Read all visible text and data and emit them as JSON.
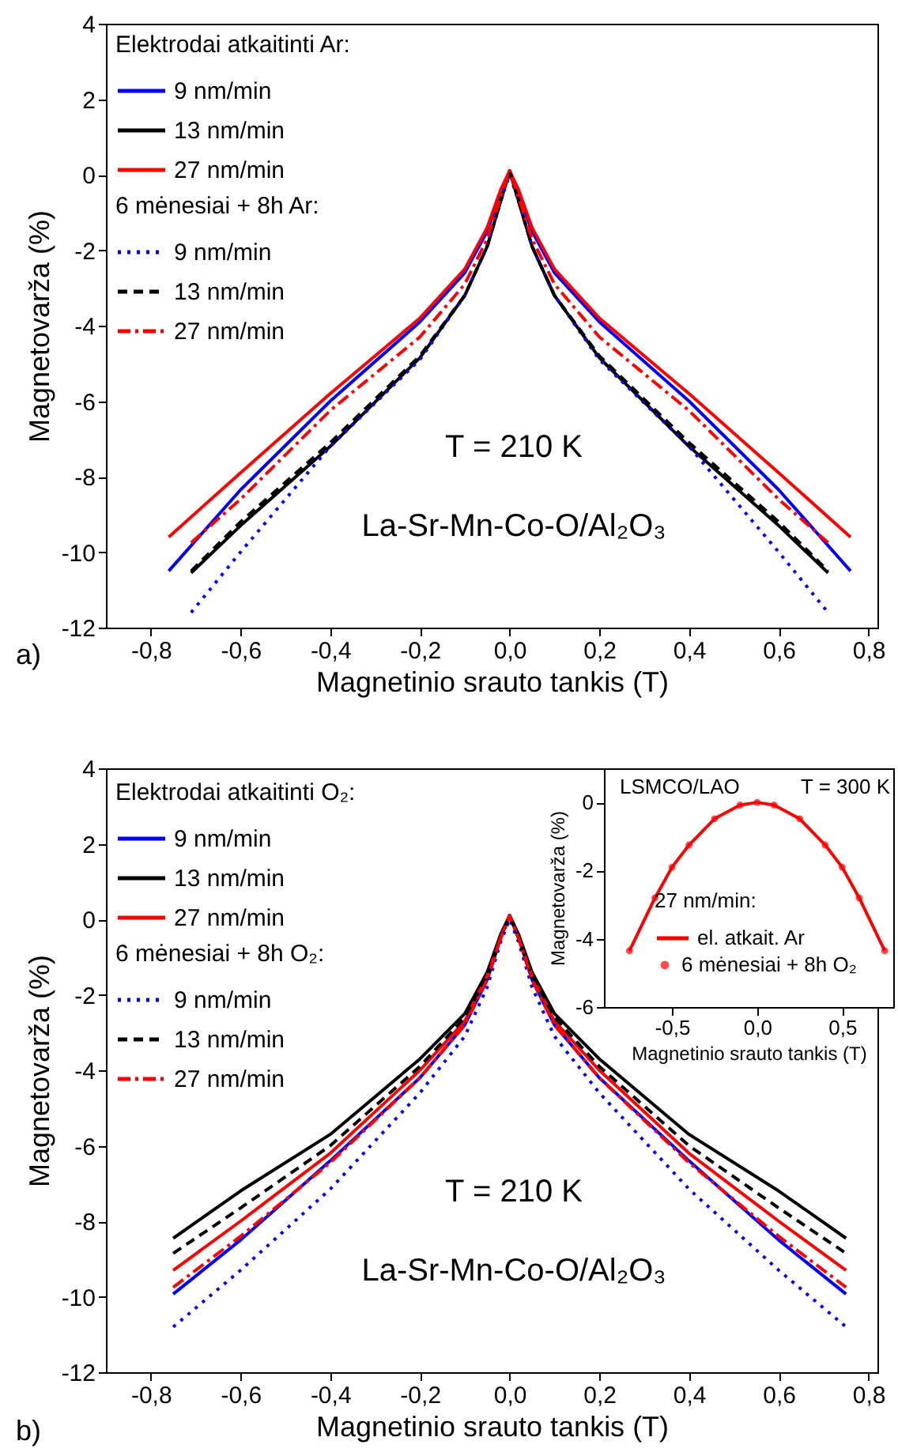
{
  "chart_data": [
    {
      "type": "line",
      "xlabel": "Magnetinio srauto tankis (T)",
      "ylabel": "Magnetovarža (%)",
      "legend_title": "Elektrodai atkaitinti Ar:",
      "legend": "top left",
      "grid": false,
      "annotations": [
        "a)",
        "T = 210 K",
        "La-Sr-Mn-Co-O/Al₂O₃",
        "6 mėnesiai + 8h Ar:"
      ],
      "xlim": [
        -0.9,
        0.82
      ],
      "xticks": [
        {
          "value": -0.8,
          "label": "-0,8"
        },
        {
          "value": -0.6,
          "label": "-0,6"
        },
        {
          "value": -0.4,
          "label": "-0,4"
        },
        {
          "value": -0.2,
          "label": "-0,2"
        },
        {
          "value": 0,
          "label": "0,0"
        },
        {
          "value": 0.2,
          "label": "0,2"
        },
        {
          "value": 0.4,
          "label": "0,4"
        },
        {
          "value": 0.6,
          "label": "0,6"
        },
        {
          "value": 0.8,
          "label": "0,8"
        }
      ],
      "ylim": [
        -12,
        4
      ],
      "yticks": [
        -12,
        -10,
        -8,
        -6,
        -4,
        -2,
        0,
        2,
        4
      ],
      "x": [
        -0.76,
        -0.6,
        -0.4,
        -0.2,
        -0.1,
        -0.05,
        -0.02,
        0,
        0.02,
        0.05,
        0.1,
        0.2,
        0.4,
        0.6,
        0.76
      ],
      "series": [
        {
          "name": "9 nm/min",
          "color": "#0000ff",
          "line_style": "solid",
          "values": [
            -10.5,
            -8.35,
            -6.0,
            -3.9,
            -2.6,
            -1.5,
            -0.5,
            0.1,
            -0.5,
            -1.5,
            -2.6,
            -3.9,
            -6.0,
            -8.35,
            -10.5
          ]
        },
        {
          "name": "13 nm/min",
          "color": "#000000",
          "line_style": "solid",
          "x": [
            -0.71,
            -0.6,
            -0.4,
            -0.2,
            -0.1,
            -0.05,
            -0.02,
            0,
            0.02,
            0.05,
            0.1,
            0.2,
            0.4,
            0.6,
            0.71
          ],
          "values": [
            -10.55,
            -9.3,
            -7.2,
            -4.85,
            -3.2,
            -1.9,
            -0.7,
            0.1,
            -0.7,
            -1.9,
            -3.2,
            -4.85,
            -7.2,
            -9.3,
            -10.55
          ]
        },
        {
          "name": "27 nm/min",
          "color": "#ff0000",
          "line_style": "solid",
          "values": [
            -9.6,
            -7.9,
            -5.8,
            -3.8,
            -2.5,
            -1.4,
            -0.4,
            0.1,
            -0.4,
            -1.4,
            -2.5,
            -3.8,
            -5.8,
            -7.9,
            -9.6
          ]
        },
        {
          "name": "9 nm/min",
          "color": "#0000ff",
          "line_style": "dotted",
          "x": [
            -0.71,
            -0.6,
            -0.4,
            -0.2,
            -0.1,
            -0.05,
            -0.02,
            0,
            0.02,
            0.05,
            0.1,
            0.2,
            0.4,
            0.6,
            0.71
          ],
          "values": [
            -11.6,
            -10.0,
            -7.2,
            -4.9,
            -3.2,
            -1.9,
            -0.7,
            0.0,
            -0.7,
            -1.9,
            -3.2,
            -4.9,
            -7.2,
            -10.0,
            -11.6
          ]
        },
        {
          "name": "13 nm/min",
          "color": "#000000",
          "line_style": "dashed",
          "x": [
            -0.71,
            -0.6,
            -0.4,
            -0.2,
            -0.1,
            -0.05,
            -0.02,
            0,
            0.02,
            0.05,
            0.1,
            0.2,
            0.4,
            0.6,
            0.71
          ],
          "values": [
            -10.5,
            -9.2,
            -7.1,
            -4.8,
            -3.2,
            -1.9,
            -0.7,
            0.1,
            -0.7,
            -1.9,
            -3.2,
            -4.8,
            -7.1,
            -9.2,
            -10.5
          ]
        },
        {
          "name": "27 nm/min",
          "color": "#ff0000",
          "line_style": "dashdot",
          "x": [
            -0.71,
            -0.6,
            -0.4,
            -0.2,
            -0.1,
            -0.05,
            -0.02,
            0,
            0.02,
            0.05,
            0.1,
            0.2,
            0.4,
            0.6,
            0.71
          ],
          "values": [
            -9.75,
            -8.6,
            -6.25,
            -4.3,
            -2.9,
            -1.7,
            -0.6,
            0.1,
            -0.6,
            -1.7,
            -2.9,
            -4.3,
            -6.25,
            -8.6,
            -9.75
          ]
        }
      ]
    },
    {
      "type": "line",
      "xlabel": "Magnetinio srauto tankis (T)",
      "ylabel": "Magnetovarža (%)",
      "legend_title": "Elektrodai atkaitinti O₂:",
      "legend": "top left",
      "grid": false,
      "annotations": [
        "b)",
        "T = 210 K",
        "La-Sr-Mn-Co-O/Al₂O₃",
        "6 mėnesiai + 8h O₂:"
      ],
      "xlim": [
        -0.9,
        0.82
      ],
      "xticks": [
        {
          "value": -0.8,
          "label": "-0,8"
        },
        {
          "value": -0.6,
          "label": "-0,6"
        },
        {
          "value": -0.4,
          "label": "-0,4"
        },
        {
          "value": -0.2,
          "label": "-0,2"
        },
        {
          "value": 0,
          "label": "0,0"
        },
        {
          "value": 0.2,
          "label": "0,2"
        },
        {
          "value": 0.4,
          "label": "0,4"
        },
        {
          "value": 0.6,
          "label": "0,6"
        },
        {
          "value": 0.8,
          "label": "0,8"
        }
      ],
      "ylim": [
        -12,
        4
      ],
      "yticks": [
        -12,
        -10,
        -8,
        -6,
        -4,
        -2,
        0,
        2,
        4
      ],
      "x": [
        -0.75,
        -0.6,
        -0.4,
        -0.2,
        -0.1,
        -0.05,
        -0.02,
        0,
        0.02,
        0.05,
        0.1,
        0.2,
        0.4,
        0.6,
        0.75
      ],
      "series": [
        {
          "name": "9 nm/min",
          "color": "#0000ff",
          "line_style": "solid",
          "values": [
            -9.93,
            -8.5,
            -6.4,
            -4.2,
            -2.8,
            -1.6,
            -0.5,
            0.1,
            -0.5,
            -1.6,
            -2.8,
            -4.2,
            -6.4,
            -8.5,
            -9.93
          ]
        },
        {
          "name": "13 nm/min",
          "color": "#000000",
          "line_style": "solid",
          "values": [
            -8.45,
            -7.2,
            -5.7,
            -3.7,
            -2.5,
            -1.4,
            -0.4,
            0.1,
            -0.4,
            -1.4,
            -2.5,
            -3.7,
            -5.7,
            -7.2,
            -8.45
          ]
        },
        {
          "name": "27 nm/min",
          "color": "#ff0000",
          "line_style": "solid",
          "values": [
            -9.3,
            -8.0,
            -6.2,
            -4.0,
            -2.7,
            -1.5,
            -0.5,
            0.1,
            -0.5,
            -1.5,
            -2.7,
            -4.0,
            -6.2,
            -8.0,
            -9.3
          ]
        },
        {
          "name": "9 nm/min",
          "color": "#0000ff",
          "line_style": "dotted",
          "values": [
            -10.8,
            -9.3,
            -7.15,
            -4.6,
            -3.1,
            -1.8,
            -0.6,
            0.0,
            -0.6,
            -1.8,
            -3.1,
            -4.6,
            -7.15,
            -9.3,
            -10.8
          ]
        },
        {
          "name": "13 nm/min",
          "color": "#000000",
          "line_style": "dashed",
          "values": [
            -8.85,
            -7.65,
            -6.0,
            -3.9,
            -2.6,
            -1.5,
            -0.5,
            0.1,
            -0.5,
            -1.5,
            -2.6,
            -3.9,
            -6.0,
            -7.65,
            -8.85
          ]
        },
        {
          "name": "27 nm/min",
          "color": "#ff0000",
          "line_style": "dashdot",
          "values": [
            -9.75,
            -8.4,
            -6.45,
            -4.2,
            -2.8,
            -1.6,
            -0.5,
            0.1,
            -0.5,
            -1.6,
            -2.8,
            -4.2,
            -6.45,
            -8.4,
            -9.75
          ]
        }
      ]
    },
    {
      "type": "line",
      "xlabel": "Magnetinio srauto tankis (T)",
      "ylabel": "Magnetovarža (%)",
      "legend_title": "27 nm/min:",
      "legend": "bottom",
      "grid": false,
      "annotations": [
        "LSMCO/LAO",
        "T = 300 K"
      ],
      "xlim": [
        -0.9,
        0.8
      ],
      "xticks": [
        {
          "value": -0.5,
          "label": "-0,5"
        },
        {
          "value": 0,
          "label": "0,0"
        },
        {
          "value": 0.5,
          "label": "0,5"
        }
      ],
      "ylim": [
        -6,
        1
      ],
      "yticks": [
        -6,
        -4,
        -2,
        0
      ],
      "x": [
        -0.75,
        -0.6,
        -0.5,
        -0.4,
        -0.25,
        -0.1,
        0,
        0.1,
        0.25,
        0.4,
        0.5,
        0.6,
        0.75
      ],
      "series": [
        {
          "name": "el. atkait. Ar",
          "color": "#ff0000",
          "line_style": "solid",
          "values": [
            -4.35,
            -2.8,
            -1.9,
            -1.25,
            -0.48,
            -0.08,
            0,
            -0.08,
            -0.48,
            -1.25,
            -1.9,
            -2.8,
            -4.35
          ]
        },
        {
          "name": "6 mėnesiai + 8h O₂",
          "color": "#ff0000",
          "type": "scatter",
          "marker": "circle",
          "values": [
            -4.35,
            -2.8,
            -1.9,
            -1.25,
            -0.48,
            -0.08,
            0,
            -0.08,
            -0.48,
            -1.25,
            -1.9,
            -2.8,
            -4.35
          ]
        }
      ]
    }
  ]
}
